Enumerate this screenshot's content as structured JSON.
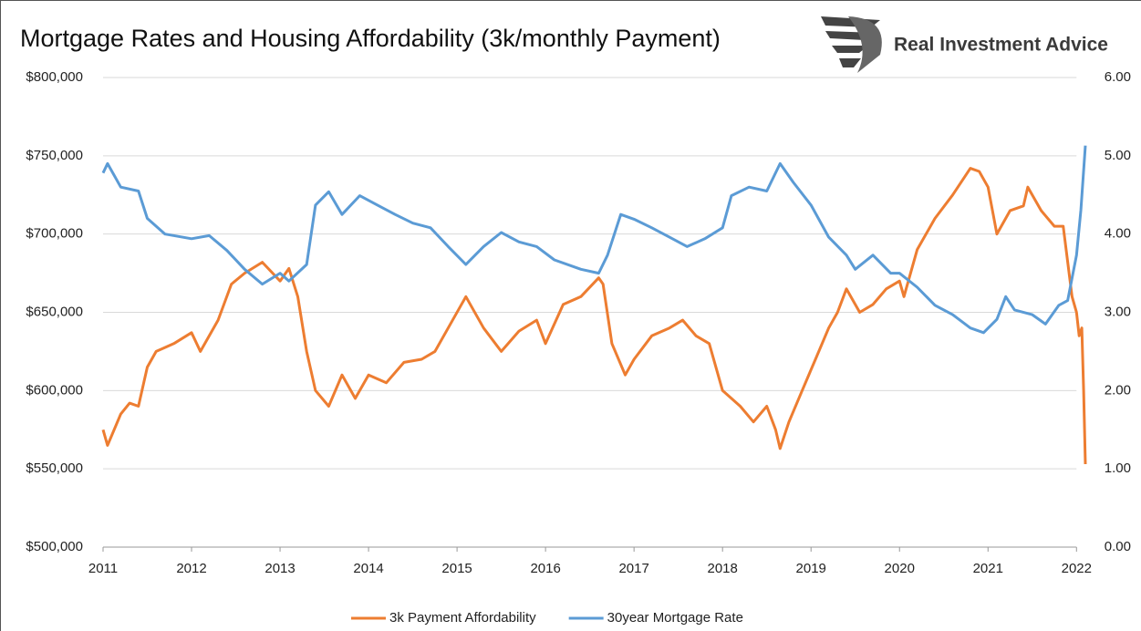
{
  "chart_data": {
    "type": "line",
    "title": "Mortgage Rates and Housing Affordability (3k/monthly Payment)",
    "brand": "Real Investment Advice",
    "xlim": [
      2011,
      2022.1
    ],
    "xticks": [
      2011,
      2012,
      2013,
      2014,
      2015,
      2016,
      2017,
      2018,
      2019,
      2020,
      2021,
      2022
    ],
    "ylim": [
      500000,
      800000
    ],
    "yticks": [
      {
        "value": 500000,
        "label": "$500,000"
      },
      {
        "value": 550000,
        "label": "$550,000"
      },
      {
        "value": 600000,
        "label": "$600,000"
      },
      {
        "value": 650000,
        "label": "$650,000"
      },
      {
        "value": 700000,
        "label": "$700,000"
      },
      {
        "value": 750000,
        "label": "$750,000"
      },
      {
        "value": 800000,
        "label": "$800,000"
      }
    ],
    "y2lim": [
      0,
      6
    ],
    "y2ticks": [
      {
        "value": 0,
        "label": "0.00"
      },
      {
        "value": 1,
        "label": "1.00"
      },
      {
        "value": 2,
        "label": "2.00"
      },
      {
        "value": 3,
        "label": "3.00"
      },
      {
        "value": 4,
        "label": "4.00"
      },
      {
        "value": 5,
        "label": "5.00"
      },
      {
        "value": 6,
        "label": "6.00"
      }
    ],
    "grid": true,
    "legend": "bottom",
    "series": [
      {
        "name": "3k Payment Affordability",
        "color": "#ed7d31",
        "axis": "y",
        "x": [
          2011.0,
          2011.05,
          2011.2,
          2011.3,
          2011.4,
          2011.5,
          2011.6,
          2011.8,
          2012.0,
          2012.1,
          2012.3,
          2012.45,
          2012.6,
          2012.8,
          2013.0,
          2013.1,
          2013.2,
          2013.3,
          2013.4,
          2013.55,
          2013.7,
          2013.85,
          2014.0,
          2014.2,
          2014.4,
          2014.6,
          2014.75,
          2014.9,
          2015.1,
          2015.3,
          2015.5,
          2015.7,
          2015.9,
          2016.0,
          2016.2,
          2016.4,
          2016.6,
          2016.65,
          2016.75,
          2016.9,
          2017.0,
          2017.2,
          2017.4,
          2017.55,
          2017.7,
          2017.85,
          2018.0,
          2018.2,
          2018.35,
          2018.5,
          2018.6,
          2018.65,
          2018.75,
          2018.9,
          2019.05,
          2019.2,
          2019.3,
          2019.4,
          2019.55,
          2019.7,
          2019.85,
          2020.0,
          2020.05,
          2020.2,
          2020.4,
          2020.6,
          2020.8,
          2020.9,
          2021.0,
          2021.1,
          2021.25,
          2021.4,
          2021.45,
          2021.6,
          2021.75,
          2021.85,
          2021.95,
          2022.0,
          2022.03,
          2022.06,
          2022.08,
          2022.1
        ],
        "values": [
          575000,
          565000,
          585000,
          592000,
          590000,
          615000,
          625000,
          630000,
          637000,
          625000,
          645000,
          668000,
          675000,
          682000,
          670000,
          678000,
          660000,
          625000,
          600000,
          590000,
          610000,
          595000,
          610000,
          605000,
          618000,
          620000,
          625000,
          640000,
          660000,
          640000,
          625000,
          638000,
          645000,
          630000,
          655000,
          660000,
          672000,
          668000,
          630000,
          610000,
          620000,
          635000,
          640000,
          645000,
          635000,
          630000,
          600000,
          590000,
          580000,
          590000,
          575000,
          563000,
          580000,
          600000,
          620000,
          640000,
          650000,
          665000,
          650000,
          655000,
          665000,
          670000,
          660000,
          690000,
          710000,
          725000,
          742000,
          740000,
          730000,
          700000,
          715000,
          718000,
          730000,
          715000,
          705000,
          705000,
          660000,
          650000,
          635000,
          640000,
          600000,
          553000
        ]
      },
      {
        "name": "30year Mortgage Rate",
        "color": "#5b9bd5",
        "axis": "y2",
        "x": [
          2011.0,
          2011.05,
          2011.2,
          2011.4,
          2011.5,
          2011.7,
          2012.0,
          2012.2,
          2012.4,
          2012.6,
          2012.8,
          2013.0,
          2013.1,
          2013.3,
          2013.4,
          2013.55,
          2013.7,
          2013.9,
          2014.1,
          2014.3,
          2014.5,
          2014.7,
          2014.9,
          2015.1,
          2015.3,
          2015.5,
          2015.7,
          2015.9,
          2016.1,
          2016.4,
          2016.6,
          2016.7,
          2016.85,
          2017.0,
          2017.2,
          2017.4,
          2017.6,
          2017.8,
          2018.0,
          2018.1,
          2018.3,
          2018.5,
          2018.65,
          2018.8,
          2019.0,
          2019.2,
          2019.4,
          2019.5,
          2019.7,
          2019.9,
          2020.0,
          2020.2,
          2020.4,
          2020.6,
          2020.8,
          2020.95,
          2021.1,
          2021.2,
          2021.3,
          2021.5,
          2021.65,
          2021.8,
          2021.9,
          2022.0,
          2022.05,
          2022.1
        ],
        "values": [
          4.78,
          4.9,
          4.6,
          4.55,
          4.2,
          4.0,
          3.94,
          3.98,
          3.79,
          3.55,
          3.36,
          3.5,
          3.4,
          3.61,
          4.37,
          4.54,
          4.25,
          4.49,
          4.37,
          4.25,
          4.14,
          4.08,
          3.84,
          3.61,
          3.84,
          4.02,
          3.9,
          3.84,
          3.67,
          3.55,
          3.5,
          3.73,
          4.25,
          4.19,
          4.08,
          3.96,
          3.84,
          3.94,
          4.08,
          4.49,
          4.6,
          4.55,
          4.9,
          4.66,
          4.37,
          3.96,
          3.73,
          3.55,
          3.73,
          3.5,
          3.5,
          3.32,
          3.09,
          2.97,
          2.8,
          2.74,
          2.91,
          3.2,
          3.03,
          2.97,
          2.85,
          3.09,
          3.15,
          3.73,
          4.31,
          5.13
        ]
      }
    ]
  }
}
